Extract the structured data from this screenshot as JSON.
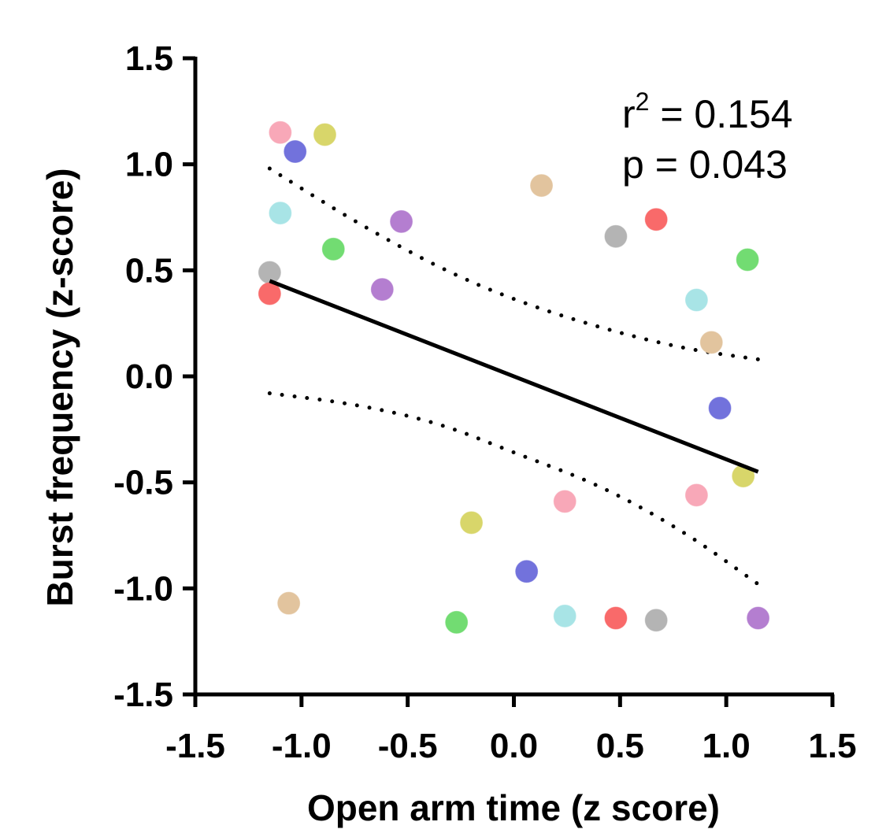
{
  "chart_data": {
    "type": "scatter",
    "xlabel": "Open arm time (z score)",
    "ylabel": "Burst frequency (z-score)",
    "xlim": [
      -1.5,
      1.5
    ],
    "ylim": [
      -1.5,
      1.5
    ],
    "x_ticks": [
      "-1.5",
      "-1.0",
      "-0.5",
      "0.0",
      "0.5",
      "1.0",
      "1.5"
    ],
    "y_ticks": [
      "1.5",
      "1.0",
      "0.5",
      "0.0",
      "-0.5",
      "-1.0",
      "-1.5"
    ],
    "grid": false,
    "annotations": {
      "r2_prefix": "r",
      "r2_exp": "2",
      "r2_value": " = 0.154",
      "p_text": "p = 0.043"
    },
    "points": [
      {
        "x": -1.15,
        "y": 0.49,
        "color": "#b4b4b4"
      },
      {
        "x": -1.15,
        "y": 0.39,
        "color": "#f96a6a"
      },
      {
        "x": -1.1,
        "y": 1.15,
        "color": "#f8a8b8"
      },
      {
        "x": -1.1,
        "y": 0.77,
        "color": "#a8e4e6"
      },
      {
        "x": -1.03,
        "y": 1.06,
        "color": "#7272dc"
      },
      {
        "x": -1.06,
        "y": -1.07,
        "color": "#e2c49e"
      },
      {
        "x": -0.89,
        "y": 1.14,
        "color": "#d8d66a"
      },
      {
        "x": -0.85,
        "y": 0.6,
        "color": "#72dc72"
      },
      {
        "x": -0.62,
        "y": 0.41,
        "color": "#b47ed0"
      },
      {
        "x": -0.53,
        "y": 0.73,
        "color": "#b47ed0"
      },
      {
        "x": -0.27,
        "y": -1.16,
        "color": "#72dc72"
      },
      {
        "x": -0.2,
        "y": -0.69,
        "color": "#d8d66a"
      },
      {
        "x": 0.06,
        "y": -0.92,
        "color": "#7272dc"
      },
      {
        "x": 0.13,
        "y": 0.9,
        "color": "#e2c49e"
      },
      {
        "x": 0.24,
        "y": -0.59,
        "color": "#f8a8b8"
      },
      {
        "x": 0.24,
        "y": -1.13,
        "color": "#a8e4e6"
      },
      {
        "x": 0.48,
        "y": 0.66,
        "color": "#b4b4b4"
      },
      {
        "x": 0.48,
        "y": -1.14,
        "color": "#f96a6a"
      },
      {
        "x": 0.67,
        "y": 0.74,
        "color": "#f96a6a"
      },
      {
        "x": 0.67,
        "y": -1.15,
        "color": "#b4b4b4"
      },
      {
        "x": 0.86,
        "y": 0.36,
        "color": "#a8e4e6"
      },
      {
        "x": 0.86,
        "y": -0.56,
        "color": "#f8a8b8"
      },
      {
        "x": 0.93,
        "y": 0.16,
        "color": "#e2c49e"
      },
      {
        "x": 0.97,
        "y": -0.15,
        "color": "#7272dc"
      },
      {
        "x": 1.08,
        "y": -0.47,
        "color": "#d8d66a"
      },
      {
        "x": 1.1,
        "y": 0.55,
        "color": "#72dc72"
      },
      {
        "x": 1.15,
        "y": -1.14,
        "color": "#b47ed0"
      }
    ],
    "regression_line": {
      "x": [
        -1.15,
        1.15
      ],
      "y": [
        0.45,
        -0.45
      ]
    },
    "ci_upper": [
      {
        "x": -1.15,
        "y": 0.98
      },
      {
        "x": -0.75,
        "y": 0.73
      },
      {
        "x": -0.35,
        "y": 0.51
      },
      {
        "x": 0.0,
        "y": 0.36
      },
      {
        "x": 0.4,
        "y": 0.23
      },
      {
        "x": 0.8,
        "y": 0.13
      },
      {
        "x": 1.15,
        "y": 0.08
      }
    ],
    "ci_lower": [
      {
        "x": -1.15,
        "y": -0.08
      },
      {
        "x": -0.75,
        "y": -0.13
      },
      {
        "x": -0.35,
        "y": -0.22
      },
      {
        "x": 0.0,
        "y": -0.36
      },
      {
        "x": 0.4,
        "y": -0.51
      },
      {
        "x": 0.8,
        "y": -0.73
      },
      {
        "x": 1.15,
        "y": -0.98
      }
    ]
  }
}
